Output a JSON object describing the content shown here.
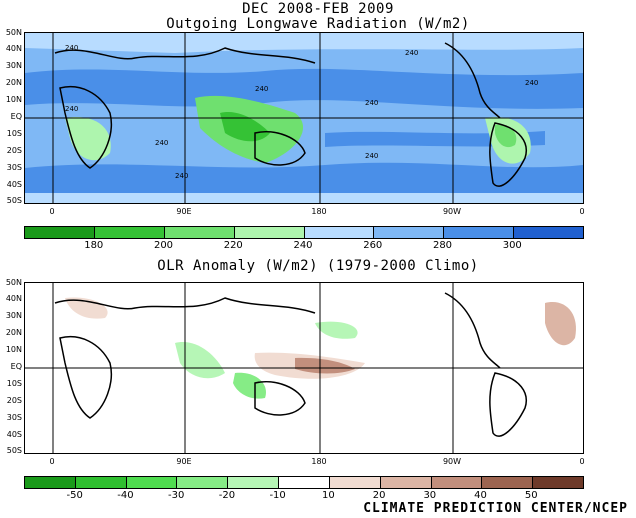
{
  "header": {
    "period": "DEC 2008-FEB 2009",
    "olr_title": "Outgoing Longwave Radiation (W/m2)",
    "anom_title": "OLR Anomaly (W/m2) (1979-2000 Climo)"
  },
  "map_axes": {
    "lat_labels": [
      "50N",
      "40N",
      "30N",
      "20N",
      "10N",
      "EQ",
      "10S",
      "20S",
      "30S",
      "40S",
      "50S"
    ],
    "lon_labels": [
      "0",
      "90E",
      "180",
      "90W",
      "0"
    ]
  },
  "contour_label": "240",
  "olr_colorbar": {
    "labels": [
      "180",
      "200",
      "220",
      "240",
      "260",
      "280",
      "300"
    ],
    "colors": [
      "#1a9a1a",
      "#35c235",
      "#6fe06f",
      "#aef5ae",
      "#b8dcff",
      "#7fb8f5",
      "#4a8fe8",
      "#2060d0"
    ]
  },
  "anom_colorbar": {
    "labels": [
      "-50",
      "-40",
      "-30",
      "-20",
      "-10",
      "10",
      "20",
      "30",
      "40",
      "50"
    ],
    "colors": [
      "#1a9a1a",
      "#2fbf2f",
      "#4fdc4f",
      "#86ec86",
      "#b6f6b6",
      "#ffffff",
      "#f1dcd2",
      "#dcb5a5",
      "#c28f7d",
      "#9c6450",
      "#6e3a2a"
    ]
  },
  "footer": {
    "credit": "CLIMATE PREDICTION CENTER/NCEP"
  }
}
